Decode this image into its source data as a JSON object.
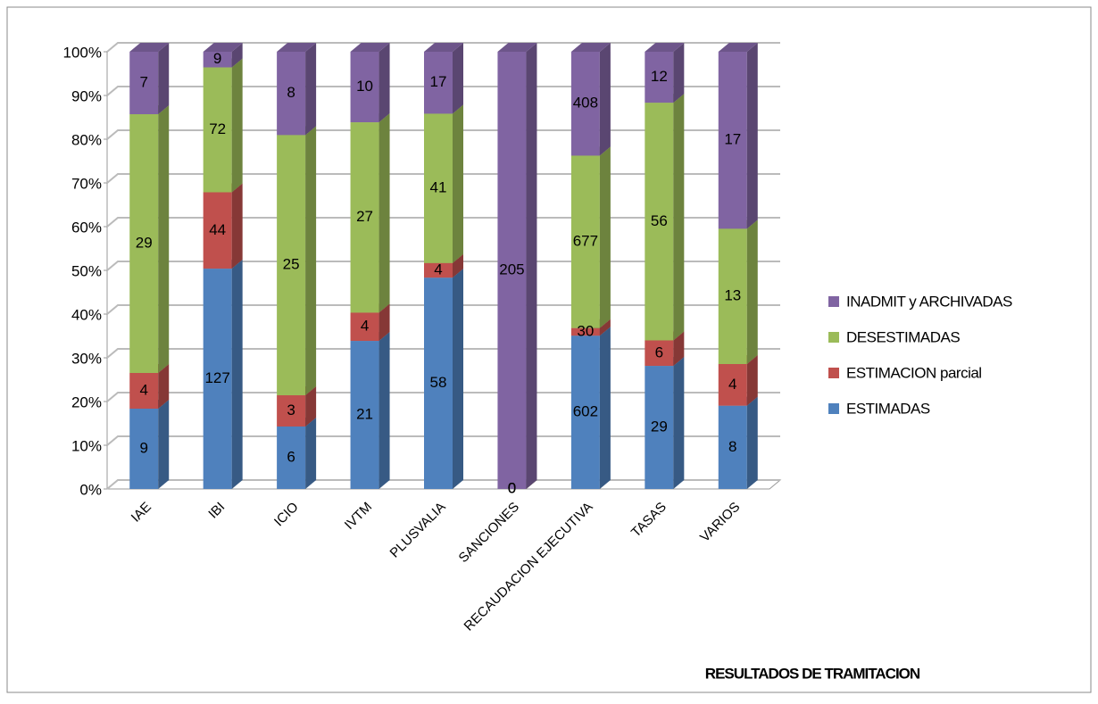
{
  "chart_data": {
    "type": "bar",
    "stack": "percent",
    "x_label": "RESULTADOS DE TRAMITACION",
    "categories": [
      "IAE",
      "IBI",
      "ICIO",
      "IVTM",
      "PLUSVALIA",
      "SANCIONES",
      "RECAUDACION EJECUTIVA",
      "TASAS",
      "VARIOS"
    ],
    "series": [
      {
        "name": "ESTIMADAS",
        "color": "#4f81bd",
        "values": [
          9,
          127,
          6,
          21,
          58,
          0,
          602,
          29,
          8
        ]
      },
      {
        "name": "ESTIMACION parcial",
        "color": "#c0504d",
        "values": [
          4,
          44,
          3,
          4,
          4,
          0,
          30,
          6,
          4
        ]
      },
      {
        "name": "DESESTIMADAS",
        "color": "#9bbb59",
        "values": [
          29,
          72,
          25,
          27,
          41,
          0,
          677,
          56,
          13
        ]
      },
      {
        "name": "INADMIT y ARCHIVADAS",
        "color": "#8064a2",
        "values": [
          7,
          9,
          8,
          10,
          17,
          205,
          408,
          12,
          17
        ]
      }
    ],
    "ylim": [
      0,
      100
    ],
    "yticks": [
      {
        "value": 0,
        "label": "0%"
      },
      {
        "value": 10,
        "label": "10%"
      },
      {
        "value": 20,
        "label": "20%"
      },
      {
        "value": 30,
        "label": "30%"
      },
      {
        "value": 40,
        "label": "40%"
      },
      {
        "value": 50,
        "label": "50%"
      },
      {
        "value": 60,
        "label": "60%"
      },
      {
        "value": 70,
        "label": "70%"
      },
      {
        "value": 80,
        "label": "80%"
      },
      {
        "value": 90,
        "label": "90%"
      },
      {
        "value": 100,
        "label": "100%"
      }
    ],
    "grid": true,
    "legend": "right"
  }
}
